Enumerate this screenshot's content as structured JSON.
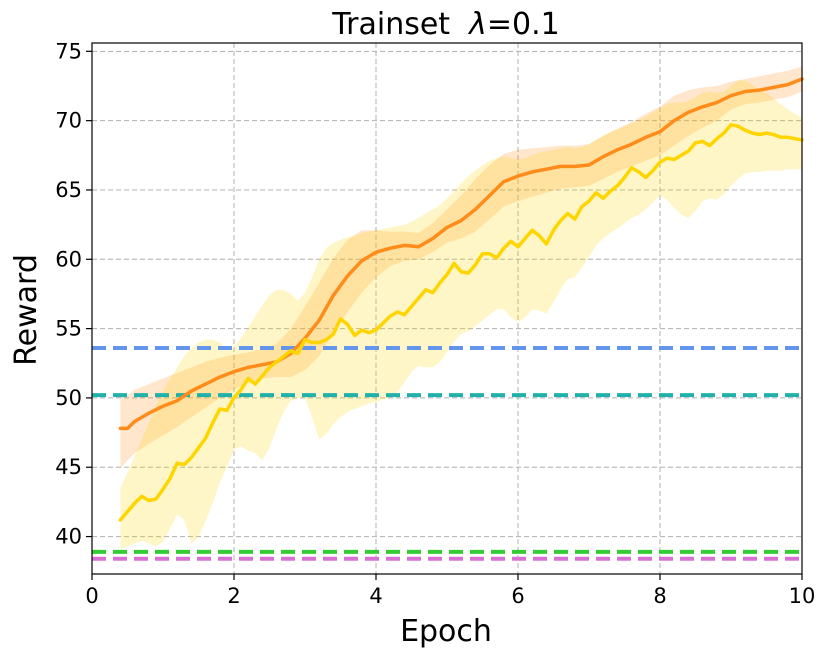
{
  "chart_data": {
    "type": "line",
    "title_main": "Trainset  ",
    "title_lambda": "λ",
    "title_suffix": "=0.1",
    "xlabel": "Epoch",
    "ylabel": "Reward",
    "xlim": [
      0,
      10
    ],
    "ylim": [
      37.3,
      75.6
    ],
    "xticks": [
      "0",
      "2",
      "4",
      "6",
      "8",
      "10"
    ],
    "xtick_values": [
      0,
      2,
      4,
      6,
      8,
      10
    ],
    "yticks": [
      "40",
      "45",
      "50",
      "55",
      "60",
      "65",
      "70",
      "75"
    ],
    "ytick_values": [
      40,
      45,
      50,
      55,
      60,
      65,
      70,
      75
    ],
    "grid": true,
    "series": [
      {
        "color": "#ff8c1a",
        "x": [
          0.4,
          0.5,
          0.6,
          0.8,
          1.0,
          1.2,
          1.4,
          1.6,
          1.8,
          2.0,
          2.2,
          2.4,
          2.6,
          2.8,
          3.0,
          3.2,
          3.4,
          3.6,
          3.8,
          4.0,
          4.2,
          4.4,
          4.6,
          4.8,
          5.0,
          5.2,
          5.4,
          5.6,
          5.8,
          6.0,
          6.2,
          6.4,
          6.6,
          6.8,
          7.0,
          7.2,
          7.4,
          7.6,
          7.8,
          8.0,
          8.2,
          8.4,
          8.6,
          8.8,
          9.0,
          9.2,
          9.4,
          9.6,
          9.8,
          10.0
        ],
        "y": [
          47.8,
          47.8,
          48.3,
          48.9,
          49.4,
          49.8,
          50.5,
          51.0,
          51.5,
          51.9,
          52.2,
          52.4,
          52.6,
          53.2,
          54.3,
          55.6,
          57.4,
          58.8,
          59.9,
          60.5,
          60.8,
          61.0,
          60.9,
          61.5,
          62.3,
          62.8,
          63.6,
          64.6,
          65.6,
          66.0,
          66.3,
          66.5,
          66.7,
          66.7,
          66.8,
          67.4,
          67.9,
          68.3,
          68.8,
          69.2,
          70.0,
          70.6,
          71.0,
          71.3,
          71.8,
          72.1,
          72.2,
          72.4,
          72.6,
          73.0
        ],
        "upper": [
          50.0,
          50.2,
          50.6,
          51.0,
          51.4,
          51.8,
          52.2,
          52.6,
          52.9,
          53.1,
          53.3,
          53.5,
          53.9,
          55.0,
          56.6,
          58.3,
          60.1,
          61.4,
          62.1,
          62.1,
          62.0,
          62.0,
          61.9,
          62.6,
          63.6,
          64.6,
          65.8,
          66.8,
          67.6,
          67.9,
          68.0,
          68.1,
          68.2,
          68.2,
          68.3,
          68.9,
          69.4,
          69.9,
          70.5,
          71.0,
          71.8,
          72.2,
          72.4,
          72.5,
          72.8,
          73.0,
          73.2,
          73.4,
          73.6,
          73.9
        ],
        "lower": [
          44.9,
          45.5,
          46.0,
          46.7,
          47.3,
          47.9,
          48.6,
          49.3,
          50.0,
          50.6,
          51.1,
          51.4,
          51.5,
          51.5,
          52.0,
          53.0,
          54.7,
          56.2,
          57.6,
          58.7,
          59.5,
          59.9,
          60.0,
          60.5,
          61.2,
          61.5,
          62.0,
          62.9,
          63.8,
          64.2,
          64.5,
          64.8,
          65.1,
          65.2,
          65.3,
          65.8,
          66.3,
          66.7,
          67.1,
          67.5,
          68.2,
          68.9,
          69.5,
          70.0,
          70.8,
          71.2,
          71.3,
          71.5,
          71.7,
          72.1
        ]
      },
      {
        "color": "#ffd500",
        "x": [
          0.4,
          0.5,
          0.6,
          0.7,
          0.8,
          0.9,
          1.0,
          1.1,
          1.2,
          1.3,
          1.4,
          1.5,
          1.6,
          1.7,
          1.8,
          1.9,
          2.0,
          2.1,
          2.2,
          2.3,
          2.4,
          2.5,
          2.6,
          2.7,
          2.8,
          2.9,
          3.0,
          3.1,
          3.2,
          3.3,
          3.4,
          3.5,
          3.6,
          3.7,
          3.8,
          3.9,
          4.0,
          4.1,
          4.2,
          4.3,
          4.4,
          4.5,
          4.6,
          4.7,
          4.8,
          4.9,
          5.0,
          5.1,
          5.2,
          5.3,
          5.4,
          5.5,
          5.6,
          5.7,
          5.8,
          5.9,
          6.0,
          6.1,
          6.2,
          6.3,
          6.4,
          6.5,
          6.6,
          6.7,
          6.8,
          6.9,
          7.0,
          7.1,
          7.2,
          7.3,
          7.4,
          7.5,
          7.6,
          7.7,
          7.8,
          7.9,
          8.0,
          8.1,
          8.2,
          8.3,
          8.4,
          8.5,
          8.6,
          8.7,
          8.8,
          8.9,
          9.0,
          9.1,
          9.2,
          9.3,
          9.4,
          9.5,
          9.6,
          9.7,
          9.8,
          9.9,
          10.0
        ],
        "y": [
          41.2,
          41.8,
          42.4,
          42.9,
          42.6,
          42.7,
          43.4,
          44.2,
          45.3,
          45.2,
          45.7,
          46.4,
          47.1,
          48.2,
          49.2,
          49.1,
          50.0,
          50.6,
          51.4,
          51.0,
          51.6,
          52.2,
          52.6,
          53.0,
          53.4,
          53.2,
          54.2,
          54.0,
          54.0,
          54.2,
          54.6,
          55.7,
          55.3,
          54.5,
          54.9,
          54.7,
          54.9,
          55.4,
          55.9,
          56.2,
          56.0,
          56.6,
          57.2,
          57.8,
          57.6,
          58.3,
          58.9,
          59.7,
          59.1,
          59.0,
          59.6,
          60.4,
          60.4,
          60.1,
          60.8,
          61.3,
          60.9,
          61.5,
          62.1,
          61.7,
          61.1,
          62.1,
          62.8,
          63.3,
          62.9,
          63.8,
          64.2,
          64.8,
          64.4,
          64.9,
          65.3,
          65.9,
          66.6,
          66.3,
          65.9,
          66.4,
          67.0,
          67.3,
          67.2,
          67.5,
          67.8,
          68.4,
          68.5,
          68.2,
          68.7,
          69.1,
          69.7,
          69.6,
          69.3,
          69.1,
          69.0,
          69.1,
          69.0,
          68.8,
          68.8,
          68.7,
          68.6
        ],
        "upper": [
          43.5,
          44.6,
          45.8,
          47.0,
          48.2,
          49.4,
          50.5,
          51.4,
          52.2,
          53.0,
          53.6,
          54.0,
          54.2,
          54.2,
          54.0,
          53.4,
          53.7,
          54.3,
          55.1,
          55.9,
          56.7,
          57.4,
          57.8,
          57.8,
          57.5,
          57.0,
          57.6,
          58.7,
          60.0,
          60.8,
          61.2,
          61.4,
          61.6,
          61.7,
          61.9,
          62.0,
          62.1,
          62.2,
          62.3,
          62.4,
          62.5,
          62.7,
          63.0,
          63.3,
          63.6,
          63.9,
          64.4,
          64.9,
          65.5,
          66.0,
          66.4,
          66.8,
          67.1,
          67.3,
          67.4,
          67.3,
          67.2,
          67.3,
          67.5,
          67.7,
          67.8,
          67.9,
          68.0,
          68.1,
          68.0,
          68.1,
          68.3,
          68.6,
          68.9,
          69.2,
          69.4,
          69.6,
          69.8,
          70.0,
          70.3,
          70.6,
          70.9,
          71.2,
          71.3,
          71.3,
          71.4,
          71.7,
          72.0,
          72.1,
          72.0,
          72.1,
          72.5,
          72.9,
          72.9,
          72.6,
          72.3,
          72.0,
          71.6,
          71.2,
          70.8,
          70.5,
          70.2
        ],
        "lower": [
          39.1,
          39.3,
          39.5,
          39.7,
          39.5,
          39.3,
          39.6,
          40.6,
          41.6,
          41.2,
          39.5,
          40.0,
          41.1,
          42.4,
          43.9,
          45.0,
          46.3,
          46.5,
          46.2,
          46.0,
          45.5,
          46.4,
          47.8,
          49.0,
          49.8,
          50.0,
          50.0,
          48.6,
          47.0,
          47.4,
          48.1,
          48.6,
          49.0,
          49.2,
          49.4,
          49.6,
          49.7,
          49.9,
          50.0,
          50.4,
          51.1,
          51.9,
          52.3,
          52.2,
          52.2,
          52.6,
          53.3,
          54.1,
          54.6,
          54.8,
          55.2,
          55.6,
          56.0,
          56.4,
          56.4,
          55.8,
          55.5,
          55.8,
          56.4,
          56.3,
          56.1,
          56.9,
          57.8,
          58.6,
          58.7,
          59.4,
          60.2,
          61.0,
          61.5,
          61.9,
          62.2,
          62.6,
          63.0,
          63.2,
          63.6,
          64.1,
          64.6,
          64.3,
          63.7,
          63.2,
          63.0,
          63.5,
          64.2,
          64.4,
          64.3,
          64.7,
          65.3,
          65.8,
          66.2,
          66.3,
          66.3,
          66.4,
          66.4,
          66.4,
          66.5,
          66.5,
          66.5
        ]
      }
    ],
    "hlines": [
      {
        "y": 53.6,
        "color": "#6495ed"
      },
      {
        "y": 50.2,
        "color": "#20b2aa"
      },
      {
        "y": 38.9,
        "color": "#32cd32"
      },
      {
        "y": 38.4,
        "color": "#da70d6"
      }
    ]
  }
}
